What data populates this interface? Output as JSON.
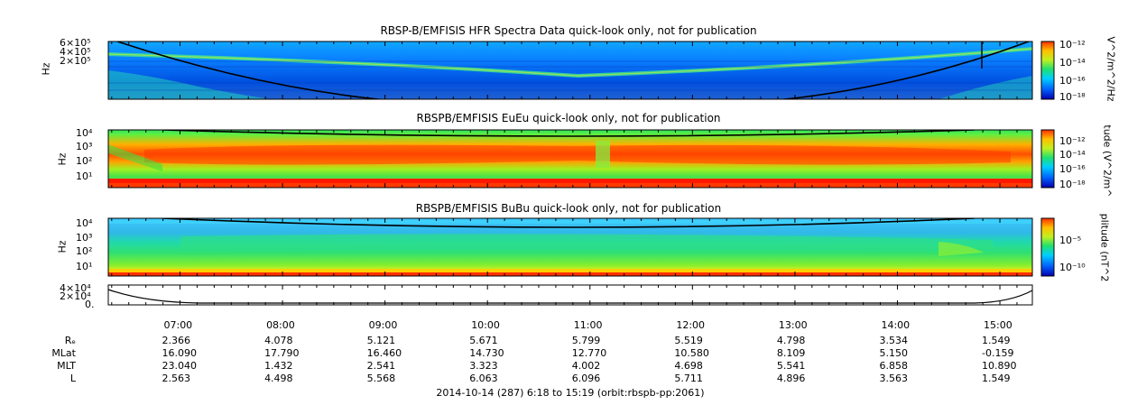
{
  "panels": [
    {
      "title": "RBSP-B/EMFISIS  HFR Spectra Data quick-look only, not for publication",
      "ylabel": "Hz",
      "yticks": [
        "6×10⁵",
        "4×10⁵",
        "2×10⁵"
      ],
      "cb_label": "V^2/m^2/Hz",
      "cb_ticks": [
        "10⁻¹²",
        "10⁻¹⁴",
        "10⁻¹⁶",
        "10⁻¹⁸"
      ]
    },
    {
      "title": "RBSPB/EMFISIS  EuEu quick-look only, not for publication",
      "ylabel": "Hz",
      "yticks": [
        "10⁴",
        "10³",
        "10²",
        "10¹"
      ],
      "cb_label": "tude (V^2/m^",
      "cb_ticks": [
        "10⁻¹²",
        "10⁻¹⁴",
        "10⁻¹⁶",
        "10⁻¹⁸"
      ]
    },
    {
      "title": "RBSPB/EMFISIS  BuBu quick-look only, not for publication",
      "ylabel": "Hz",
      "yticks": [
        "10⁴",
        "10³",
        "10²",
        "10¹"
      ],
      "cb_label": "plitude (nT^2",
      "cb_ticks": [
        "10⁻⁵",
        "10⁻¹⁰"
      ]
    },
    {
      "yticks": [
        "4×10⁴",
        "2×10⁴",
        "0."
      ]
    }
  ],
  "chart_data": {
    "type": "heatmap",
    "x_ticks": [
      "07:00",
      "08:00",
      "09:00",
      "10:00",
      "11:00",
      "12:00",
      "13:00",
      "14:00",
      "15:00"
    ],
    "xlim": [
      "06:18",
      "15:19"
    ],
    "ephemeris": {
      "labels": [
        "Rₑ",
        "MLat",
        "MLT",
        "L"
      ],
      "rows": [
        [
          "2.366",
          "4.078",
          "5.121",
          "5.671",
          "5.799",
          "5.519",
          "4.798",
          "3.534",
          "1.549"
        ],
        [
          "16.090",
          "17.790",
          "16.460",
          "14.730",
          "12.770",
          "10.580",
          "8.109",
          "5.150",
          "-0.159"
        ],
        [
          "23.040",
          "1.432",
          "2.541",
          "3.323",
          "4.002",
          "4.698",
          "5.541",
          "6.858",
          "10.890"
        ],
        [
          "2.563",
          "4.498",
          "5.568",
          "6.063",
          "6.096",
          "5.711",
          "4.896",
          "3.563",
          "1.549"
        ]
      ]
    },
    "footer": "2014-10-14 (287) 6:18 to 15:19 (orbit:rbspb-pp:2061)",
    "colormap": [
      "#0000b0",
      "#0066ff",
      "#00d0ff",
      "#20e070",
      "#c0f020",
      "#ffc000",
      "#ff3000"
    ]
  }
}
